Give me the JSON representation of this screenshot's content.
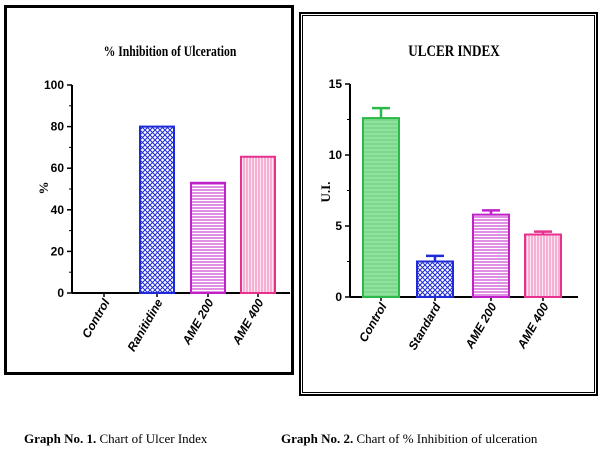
{
  "colors": {
    "green": "#2db84a",
    "green_fill": "#7cd98c",
    "blue": "#1e2ad8",
    "magenta": "#c021c9",
    "pink": "#e8308f"
  },
  "chart_data": [
    {
      "type": "bar",
      "title": "% Inhibition of Ulceration",
      "ylabel": "%",
      "xlabel": "",
      "ylim": [
        0,
        100
      ],
      "yticks": [
        "0",
        "20",
        "40",
        "60",
        "80",
        "100"
      ],
      "categories": [
        "Control",
        "Ranitidine",
        "AME 200",
        "AME 400"
      ],
      "values": [
        0,
        80,
        53,
        65.5
      ],
      "errors": [
        0,
        0,
        0,
        0
      ],
      "grid": false,
      "legend": "none"
    },
    {
      "type": "bar",
      "title": "ULCER INDEX",
      "ylabel": "U.I.",
      "xlabel": "",
      "ylim": [
        0,
        15
      ],
      "yticks": [
        "0",
        "5",
        "10",
        "15"
      ],
      "categories": [
        "Control",
        "Standard",
        "AME 200",
        "AME 400"
      ],
      "values": [
        12.6,
        2.5,
        5.8,
        4.4
      ],
      "errors": [
        0.7,
        0.4,
        0.3,
        0.2
      ],
      "grid": false,
      "legend": "none"
    }
  ],
  "captions": [
    {
      "label": "Graph No. 1.",
      "text": " Chart of Ulcer Index"
    },
    {
      "label": "Graph No. 2.",
      "text": " Chart of % Inhibition of ulceration"
    }
  ]
}
